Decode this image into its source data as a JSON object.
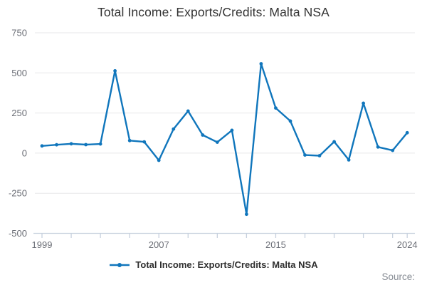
{
  "title": "Total Income: Exports/Credits: Malta NSA",
  "legend": {
    "label": "Total Income: Exports/Credits: Malta NSA"
  },
  "source_label": "Source:",
  "colors": {
    "line": "#1076bc",
    "grid": "#e7e7e9",
    "axis": "#c7d1de",
    "tick_text": "#6b6e76",
    "title_text": "#333333",
    "legend_text": "#2f2f2f",
    "source_text": "#868b93"
  },
  "chart_data": {
    "type": "line",
    "title": "Total Income: Exports/Credits: Malta NSA",
    "xlabel": "",
    "ylabel": "",
    "x": [
      1999,
      2000,
      2001,
      2002,
      2003,
      2004,
      2005,
      2006,
      2007,
      2008,
      2009,
      2010,
      2011,
      2012,
      2013,
      2014,
      2015,
      2016,
      2017,
      2018,
      2019,
      2020,
      2021,
      2022,
      2023,
      2024
    ],
    "series": [
      {
        "name": "Total Income: Exports/Credits: Malta NSA",
        "values": [
          45,
          52,
          58,
          53,
          57,
          513,
          78,
          70,
          -45,
          150,
          262,
          113,
          68,
          142,
          -381,
          557,
          281,
          200,
          -12,
          -16,
          71,
          -42,
          311,
          38,
          17,
          127
        ]
      }
    ],
    "ylim": [
      -500,
      750
    ],
    "yticks": [
      750,
      500,
      250,
      0,
      -250,
      -500
    ],
    "xticks_every_years": 2,
    "xtick_labels": [
      1999,
      2007,
      2015,
      2024
    ],
    "grid": true,
    "markers": true,
    "legend_position": "bottom",
    "source_note": "Source:"
  }
}
